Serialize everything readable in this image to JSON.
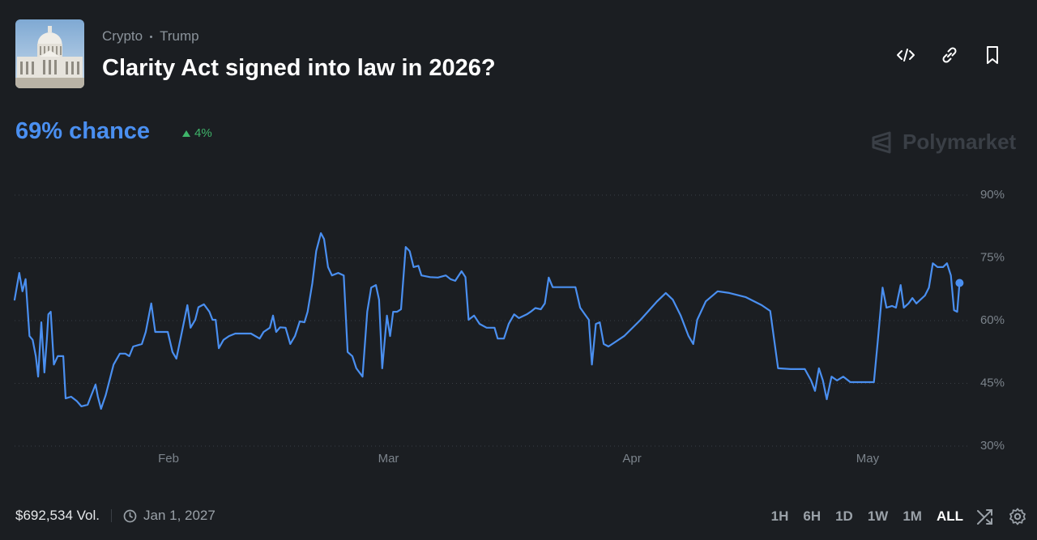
{
  "header": {
    "tags": [
      "Crypto",
      "Trump"
    ],
    "title": "Clarity Act signed into law in 2026?"
  },
  "summary": {
    "chance": "69% chance",
    "change": "4%"
  },
  "brand": "Polymarket",
  "chart_data": {
    "type": "line",
    "x": [
      12.4,
      13.0,
      13.4,
      13.8,
      14.3,
      14.7,
      15.1,
      15.4,
      15.8,
      16.2,
      16.5,
      16.7,
      17.0,
      17.4,
      17.9,
      18.6,
      18.9,
      19.6,
      20.3,
      20.9,
      21.7,
      22.1,
      22.7,
      23.0,
      23.4,
      24.0,
      25.0,
      25.8,
      26.5,
      27.0,
      27.5,
      28.6,
      29.1,
      29.8,
      30.3,
      31.2,
      31.9,
      32.5,
      33.0,
      33.6,
      34.4,
      34.8,
      35.4,
      35.8,
      36.5,
      37.2,
      37.6,
      38.0,
      38.4,
      39.0,
      39.7,
      40.5,
      41.5,
      42.5,
      43.6,
      44.1,
      44.9,
      45.3,
      45.7,
      46.2,
      46.9,
      47.5,
      48.1,
      48.7,
      49.3,
      49.7,
      50.3,
      50.8,
      51.4,
      51.8,
      52.3,
      52.8,
      53.6,
      54.3,
      54.8,
      55.4,
      55.9,
      56.7,
      57.3,
      57.8,
      58.4,
      58.8,
      59.2,
      59.8,
      60.2,
      60.6,
      61.1,
      61.6,
      62.2,
      62.7,
      63.2,
      63.8,
      64.2,
      65.3,
      66.3,
      67.3,
      67.9,
      68.5,
      69.3,
      69.8,
      70.2,
      70.9,
      71.6,
      72.5,
      73.5,
      73.9,
      74.7,
      75.3,
      76.0,
      76.6,
      77.6,
      78.1,
      78.7,
      79.4,
      79.9,
      80.4,
      80.9,
      81.7,
      82.8,
      83.8,
      84.4,
      85.0,
      85.5,
      85.9,
      86.4,
      86.9,
      87.4,
      88.0,
      90.0,
      92.1,
      94.2,
      95.3,
      96.2,
      97.2,
      98.2,
      98.8,
      99.3,
      100.4,
      101.9,
      103.4,
      105.5,
      107.5,
      108.6,
      109.6,
      111.2,
      113.0,
      113.8,
      114.3,
      114.8,
      115.3,
      115.8,
      116.4,
      117.1,
      117.9,
      118.8,
      121.8,
      122.3,
      122.9,
      123.4,
      124.1,
      124.6,
      125.2,
      125.6,
      126.2,
      126.7,
      127.2,
      128.3,
      128.8,
      129.3,
      129.9,
      130.6,
      131.1,
      131.6,
      132.0,
      132.4,
      132.7
    ],
    "series": [
      {
        "color": "#4a8ff0",
        "values": [
          65,
          71.4,
          67,
          69.9,
          56.3,
          55.4,
          51.5,
          46.6,
          59.6,
          47.6,
          55.4,
          61.5,
          62.1,
          49.5,
          51.5,
          51.5,
          41.4,
          41.8,
          40.8,
          39.5,
          39.9,
          41.8,
          44.7,
          41.8,
          38.9,
          42.2,
          49.5,
          52.1,
          52.1,
          51.5,
          53.8,
          54.4,
          57.3,
          64.1,
          57.3,
          57.3,
          57.3,
          52.5,
          50.9,
          56.3,
          63.7,
          58.3,
          60.2,
          63.2,
          63.9,
          62.1,
          60.2,
          60.2,
          53.4,
          55.4,
          56.3,
          56.9,
          56.9,
          56.9,
          55.7,
          57.3,
          58.3,
          61.2,
          57.3,
          58.4,
          58.3,
          54.4,
          56.3,
          59.8,
          59.6,
          62.1,
          68.9,
          76.6,
          80.9,
          79.5,
          72.8,
          70.8,
          71.4,
          70.8,
          52.5,
          51.5,
          48.6,
          46.6,
          62.1,
          67.9,
          68.5,
          65,
          48.6,
          61.2,
          56.3,
          62.1,
          62.1,
          62.7,
          77.6,
          76.6,
          72.8,
          73.1,
          70.8,
          70.4,
          70.3,
          70.8,
          69.9,
          69.5,
          71.8,
          70.4,
          60.2,
          61.2,
          59.2,
          58.3,
          58.3,
          55.7,
          55.7,
          59.2,
          61.5,
          60.6,
          61.5,
          62.1,
          63.0,
          62.7,
          64.1,
          70.3,
          68.0,
          68.0,
          68.0,
          68.0,
          63.1,
          61.5,
          60.2,
          49.5,
          59.2,
          59.6,
          54.4,
          53.8,
          56.3,
          60.2,
          64.6,
          66.6,
          65.0,
          61.2,
          56.3,
          54.4,
          60.2,
          64.6,
          67.0,
          66.6,
          65.6,
          63.7,
          62.3,
          48.6,
          48.4,
          48.4,
          45.7,
          43.2,
          48.6,
          45.7,
          41.2,
          46.6,
          45.7,
          46.6,
          45.3,
          45.3,
          55.4,
          67.9,
          63.1,
          63.5,
          63.1,
          68.5,
          63.1,
          64.1,
          65.4,
          64.1,
          66.0,
          67.9,
          73.7,
          72.8,
          72.8,
          73.7,
          70.8,
          62.5,
          62.1,
          69
        ]
      }
    ],
    "xlim": [
      12.4,
      134
    ],
    "xticks": [
      {
        "value": 32,
        "label": "Feb"
      },
      {
        "value": 60,
        "label": "Mar"
      },
      {
        "value": 91,
        "label": "Apr"
      },
      {
        "value": 121,
        "label": "May"
      }
    ],
    "ylim": [
      30,
      90
    ],
    "yticks": [
      {
        "value": 30,
        "label": "30%"
      },
      {
        "value": 45,
        "label": "45%"
      },
      {
        "value": 60,
        "label": "60%"
      },
      {
        "value": 75,
        "label": "75%"
      },
      {
        "value": 90,
        "label": "90%"
      }
    ],
    "grid": true
  },
  "footer": {
    "volume": "$692,534 Vol.",
    "end_date": "Jan 1, 2027",
    "ranges": [
      "1H",
      "6H",
      "1D",
      "1W",
      "1M",
      "ALL"
    ],
    "active_range": "ALL"
  }
}
